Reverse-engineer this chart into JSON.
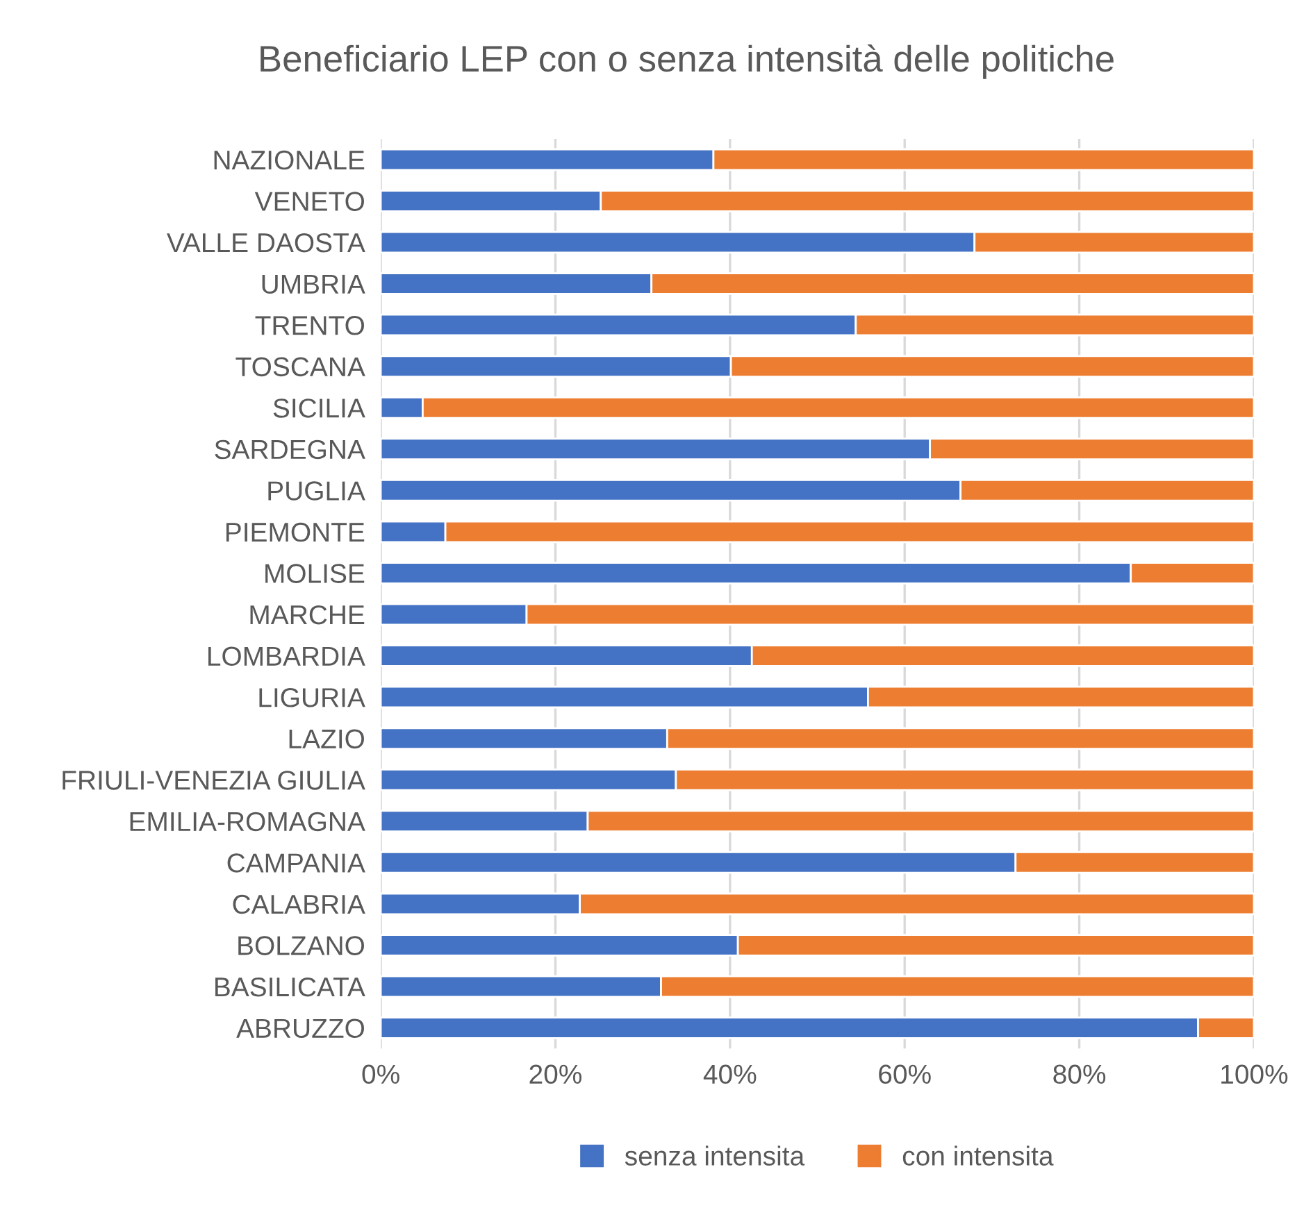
{
  "chart_data": {
    "type": "bar",
    "orientation": "horizontal",
    "stacked": true,
    "title": "Beneficiario LEP con o senza intensità delle politiche",
    "categories": [
      "NAZIONALE",
      "VENETO",
      "VALLE DAOSTA",
      "UMBRIA",
      "TRENTO",
      "TOSCANA",
      "SICILIA",
      "SARDEGNA",
      "PUGLIA",
      "PIEMONTE",
      "MOLISE",
      "MARCHE",
      "LOMBARDIA",
      "LIGURIA",
      "LAZIO",
      "FRIULI-VENEZIA GIULIA",
      "EMILIA-ROMAGNA",
      "CAMPANIA",
      "CALABRIA",
      "BOLZANO",
      "BASILICATA",
      "ABRUZZO"
    ],
    "series": [
      {
        "name": "senza intensita",
        "color": "#4472c4",
        "values": [
          38.1,
          25.2,
          68.0,
          31.0,
          54.4,
          40.1,
          4.8,
          62.9,
          66.4,
          7.4,
          85.9,
          16.7,
          42.5,
          55.8,
          32.8,
          33.8,
          23.7,
          72.7,
          22.8,
          40.9,
          32.1,
          93.6
        ]
      },
      {
        "name": "con intensita",
        "color": "#ed7d31",
        "values": [
          61.9,
          74.8,
          32.0,
          69.0,
          45.6,
          59.9,
          95.2,
          37.1,
          33.6,
          92.6,
          14.1,
          83.3,
          57.5,
          44.2,
          67.2,
          66.2,
          76.3,
          27.3,
          77.2,
          59.1,
          67.9,
          6.4
        ]
      }
    ],
    "xlim": [
      0,
      100
    ],
    "xticks": [
      {
        "value": 0,
        "label": "0%"
      },
      {
        "value": 20,
        "label": "20%"
      },
      {
        "value": 40,
        "label": "40%"
      },
      {
        "value": 60,
        "label": "60%"
      },
      {
        "value": 80,
        "label": "80%"
      },
      {
        "value": 100,
        "label": "100%"
      }
    ],
    "grid": "x",
    "legend": "bottom"
  }
}
